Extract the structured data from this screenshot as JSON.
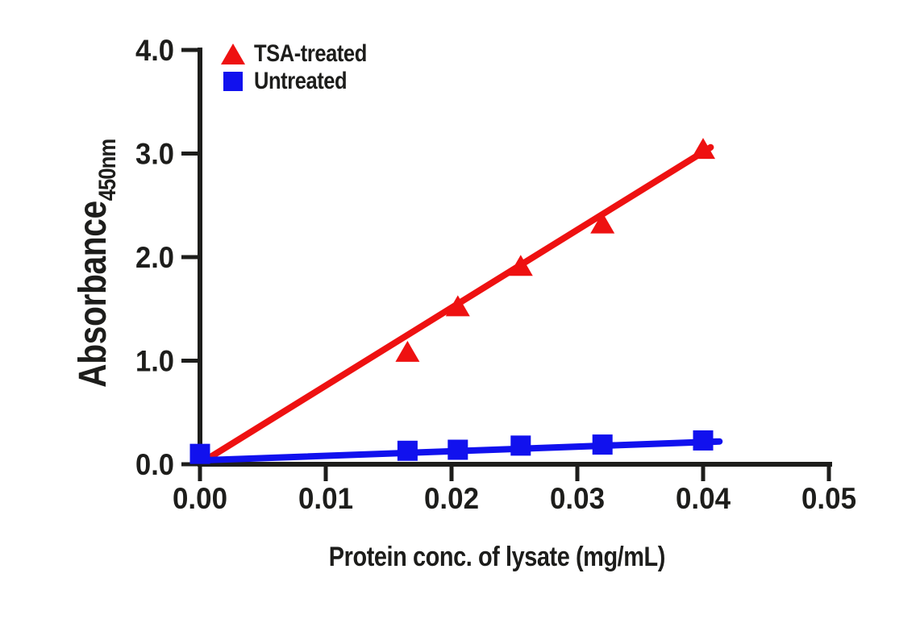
{
  "chart_data": {
    "type": "scatter",
    "title": "",
    "xlabel": "Protein conc. of lysate (mg/mL)",
    "ylabel": "Absorbance",
    "ylabel_subscript": "450nm",
    "xlim": [
      0,
      0.05
    ],
    "ylim": [
      0,
      4.0
    ],
    "x_ticks": {
      "values": [
        0,
        0.01,
        0.02,
        0.03,
        0.04,
        0.05
      ],
      "labels": [
        "0.00",
        "0.01",
        "0.02",
        "0.03",
        "0.04",
        "0.05"
      ]
    },
    "y_ticks": {
      "values": [
        0,
        1,
        2,
        3,
        4
      ],
      "labels": [
        "0.0",
        "1.0",
        "2.0",
        "3.0",
        "4.0"
      ]
    },
    "grid": false,
    "legend_position": "top-left-inside",
    "axis_color": "#1d1d1b",
    "background_color": "#ffffff",
    "series": [
      {
        "name": "TSA-treated",
        "marker": "triangle",
        "color": "#ee1111",
        "x": [
          0.0165,
          0.0205,
          0.0255,
          0.032,
          0.04
        ],
        "y": [
          1.09,
          1.53,
          1.92,
          2.33,
          3.05
        ],
        "trend_line": {
          "x1": 0.0007,
          "y1": 0.06,
          "x2": 0.0406,
          "y2": 3.06
        }
      },
      {
        "name": "Untreated",
        "marker": "square",
        "color": "#1111ee",
        "x": [
          0.0,
          0.0165,
          0.0205,
          0.0255,
          0.032,
          0.04
        ],
        "y": [
          0.1,
          0.13,
          0.14,
          0.18,
          0.19,
          0.23
        ],
        "trend_line": {
          "x1": 0.0006,
          "y1": 0.04,
          "x2": 0.0413,
          "y2": 0.22
        }
      }
    ]
  }
}
